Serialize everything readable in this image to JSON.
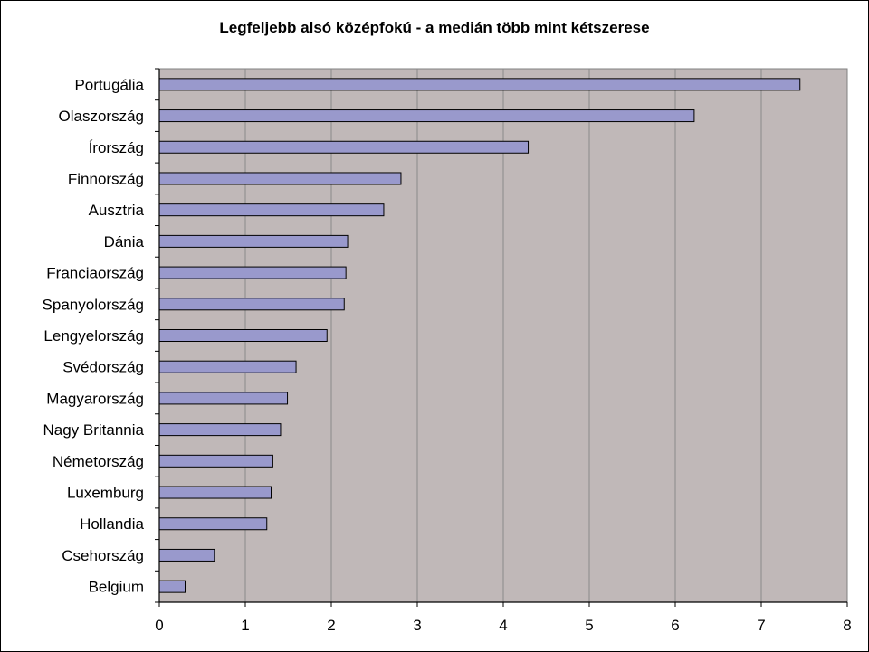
{
  "chart_data": {
    "type": "bar",
    "orientation": "horizontal",
    "title": "Legfeljebb alsó középfokú - a medián több mint kétszerese",
    "xlabel": "",
    "ylabel": "",
    "categories": [
      "Portugália",
      "Olaszország",
      "Írország",
      "Finnország",
      "Ausztria",
      "Dánia",
      "Franciaország",
      "Spanyolország",
      "Lengyelország",
      "Svédország",
      "Magyarország",
      "Nagy Britannia",
      "Németország",
      "Luxemburg",
      "Hollandia",
      "Csehország",
      "Belgium"
    ],
    "values": [
      7.45,
      6.22,
      4.29,
      2.81,
      2.61,
      2.19,
      2.17,
      2.15,
      1.95,
      1.59,
      1.49,
      1.41,
      1.32,
      1.3,
      1.25,
      0.64,
      0.3
    ],
    "xlim": [
      0,
      8
    ],
    "xticks": [
      "0",
      "1",
      "2",
      "3",
      "4",
      "5",
      "6",
      "7",
      "8"
    ],
    "grid": true,
    "colors": {
      "bar_fill": "#9999CC",
      "bar_stroke": "#000000",
      "plot_bg": "#C0B8B8",
      "grid": "#8a8a8a"
    }
  }
}
